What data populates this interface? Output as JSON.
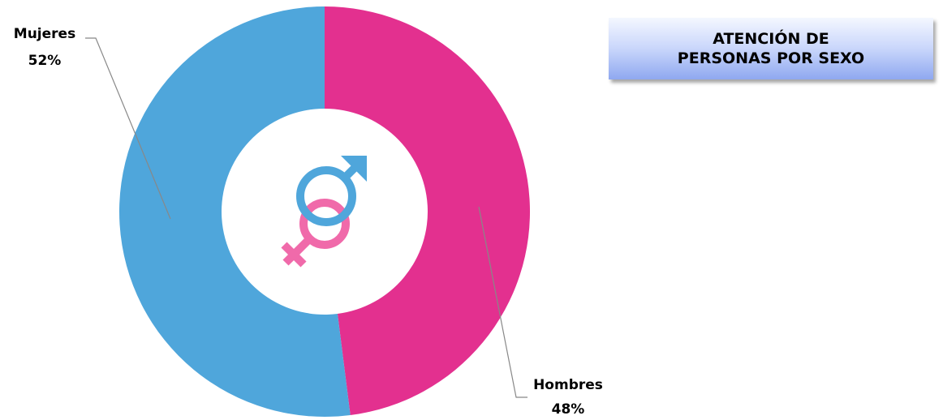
{
  "chart_data": {
    "type": "pie",
    "title": "ATENCIÓN DE PERSONAS POR SEXO",
    "categories": [
      "Hombres",
      "Mujeres"
    ],
    "values": [
      48,
      52
    ],
    "value_labels": [
      "48%",
      "52%"
    ],
    "colors": [
      "#e3308f",
      "#4fa6db"
    ],
    "donut": true
  }
}
